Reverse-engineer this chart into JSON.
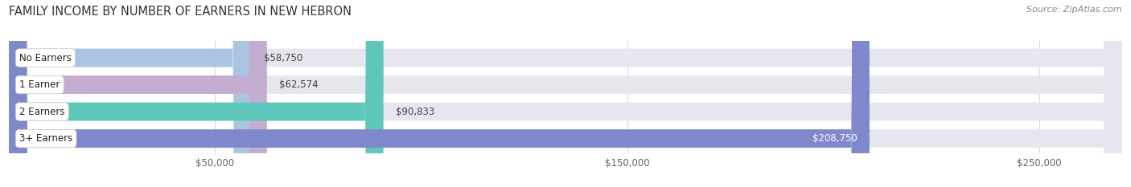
{
  "title": "FAMILY INCOME BY NUMBER OF EARNERS IN NEW HEBRON",
  "source": "Source: ZipAtlas.com",
  "categories": [
    "No Earners",
    "1 Earner",
    "2 Earners",
    "3+ Earners"
  ],
  "values": [
    58750,
    62574,
    90833,
    208750
  ],
  "bar_colors": [
    "#aac5e2",
    "#c4aed0",
    "#5ec8bc",
    "#8088cc"
  ],
  "label_colors": [
    "#444444",
    "#444444",
    "#444444",
    "#ffffff"
  ],
  "label_inside": [
    false,
    false,
    false,
    true
  ],
  "value_format": [
    "$58,750",
    "$62,574",
    "$90,833",
    "$208,750"
  ],
  "x_ticks": [
    50000,
    150000,
    250000
  ],
  "x_tick_labels": [
    "$50,000",
    "$150,000",
    "$250,000"
  ],
  "xlim": [
    0,
    270000
  ],
  "background_color": "#ffffff",
  "bar_bg_color": "#e6e6ee",
  "title_fontsize": 10.5,
  "source_fontsize": 8,
  "label_fontsize": 8.5,
  "tick_fontsize": 8.5,
  "cat_fontsize": 8.5
}
